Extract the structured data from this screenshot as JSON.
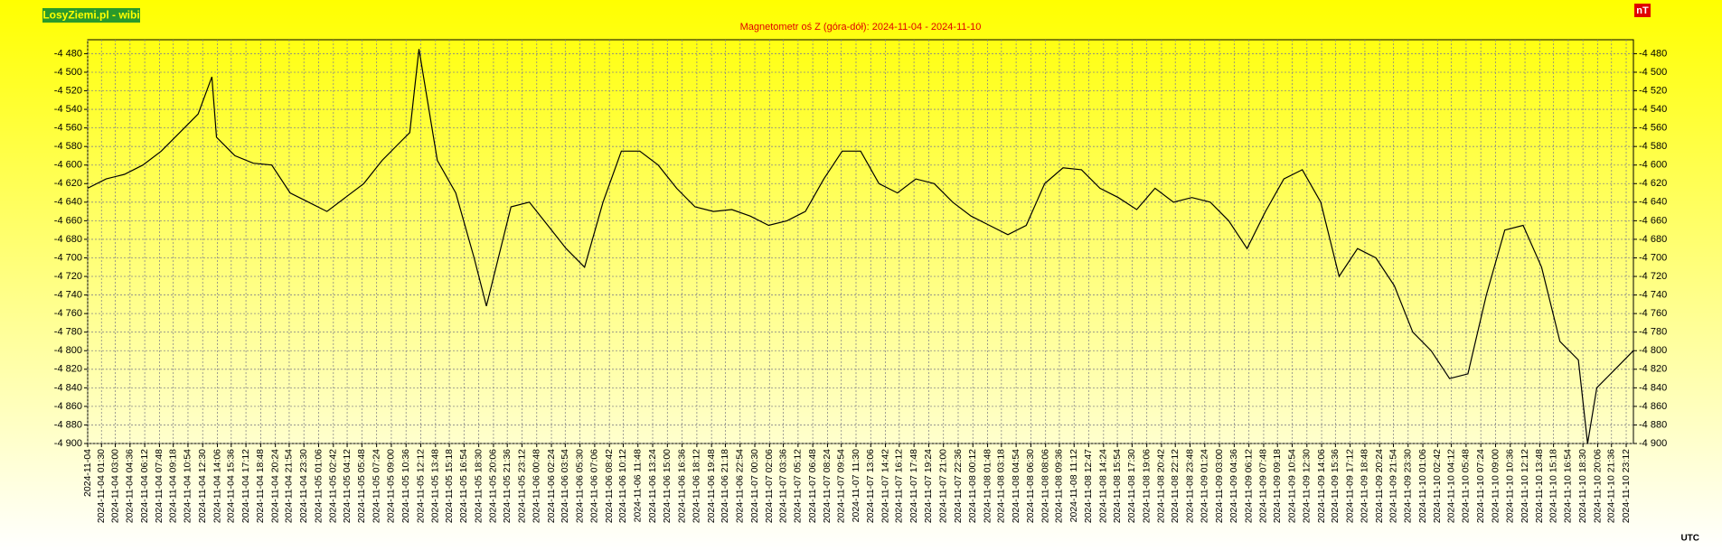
{
  "brand": "LosyZiemi.pl - wibi",
  "unit": "nT",
  "timezone": "UTC",
  "chart_data": {
    "type": "line",
    "title": "Magnetometr oś Z (góra-dół): 2024-11-04 - 2024-11-10",
    "color": "#000000",
    "grid": true,
    "x": [
      "2024-11-04 00:00",
      "2024-11-04 02:00",
      "2024-11-04 04:00",
      "2024-11-04 06:00",
      "2024-11-04 08:00",
      "2024-11-04 10:00",
      "2024-11-04 12:00",
      "2024-11-04 13:30",
      "2024-11-04 14:00",
      "2024-11-04 16:00",
      "2024-11-04 18:00",
      "2024-11-04 20:00",
      "2024-11-04 22:00",
      "2024-11-05 00:00",
      "2024-11-05 02:00",
      "2024-11-05 04:00",
      "2024-11-05 06:00",
      "2024-11-05 08:00",
      "2024-11-05 10:00",
      "2024-11-05 11:00",
      "2024-11-05 12:00",
      "2024-11-05 14:00",
      "2024-11-05 16:00",
      "2024-11-05 18:00",
      "2024-11-05 19:20",
      "2024-11-05 22:00",
      "2024-11-06 00:00",
      "2024-11-06 02:00",
      "2024-11-06 04:00",
      "2024-11-06 06:00",
      "2024-11-06 08:00",
      "2024-11-06 10:00",
      "2024-11-06 12:00",
      "2024-11-06 14:00",
      "2024-11-06 16:00",
      "2024-11-06 18:00",
      "2024-11-06 20:00",
      "2024-11-06 22:00",
      "2024-11-07 00:00",
      "2024-11-07 02:00",
      "2024-11-07 04:00",
      "2024-11-07 06:00",
      "2024-11-07 08:00",
      "2024-11-07 10:00",
      "2024-11-07 12:00",
      "2024-11-07 14:00",
      "2024-11-07 16:00",
      "2024-11-07 18:00",
      "2024-11-07 20:00",
      "2024-11-07 22:00",
      "2024-11-08 00:00",
      "2024-11-08 02:00",
      "2024-11-08 04:00",
      "2024-11-08 06:00",
      "2024-11-08 08:00",
      "2024-11-08 10:00",
      "2024-11-08 12:00",
      "2024-11-08 14:00",
      "2024-11-08 16:00",
      "2024-11-08 18:00",
      "2024-11-08 20:00",
      "2024-11-08 22:00",
      "2024-11-09 00:00",
      "2024-11-09 02:00",
      "2024-11-09 04:00",
      "2024-11-09 06:00",
      "2024-11-09 08:00",
      "2024-11-09 10:00",
      "2024-11-09 12:00",
      "2024-11-09 14:00",
      "2024-11-09 16:00",
      "2024-11-09 18:00",
      "2024-11-09 20:00",
      "2024-11-09 22:00",
      "2024-11-10 00:00",
      "2024-11-10 02:00",
      "2024-11-10 04:00",
      "2024-11-10 06:00",
      "2024-11-10 08:00",
      "2024-11-10 10:00",
      "2024-11-10 12:00",
      "2024-11-10 14:00",
      "2024-11-10 16:00",
      "2024-11-10 18:00",
      "2024-11-10 19:00",
      "2024-11-10 20:00",
      "2024-11-10 22:00",
      "2024-11-10 23:59"
    ],
    "values": [
      -4625,
      -4615,
      -4610,
      -4600,
      -4585,
      -4565,
      -4545,
      -4505,
      -4570,
      -4590,
      -4598,
      -4600,
      -4630,
      -4640,
      -4650,
      -4635,
      -4620,
      -4595,
      -4575,
      -4565,
      -4475,
      -4595,
      -4630,
      -4700,
      -4752,
      -4645,
      -4640,
      -4665,
      -4690,
      -4710,
      -4640,
      -4585,
      -4585,
      -4600,
      -4625,
      -4645,
      -4650,
      -4648,
      -4655,
      -4665,
      -4660,
      -4650,
      -4615,
      -4585,
      -4585,
      -4620,
      -4630,
      -4615,
      -4620,
      -4640,
      -4655,
      -4665,
      -4675,
      -4665,
      -4620,
      -4603,
      -4605,
      -4625,
      -4635,
      -4648,
      -4625,
      -4640,
      -4635,
      -4640,
      -4660,
      -4690,
      -4650,
      -4615,
      -4605,
      -4640,
      -4720,
      -4690,
      -4700,
      -4730,
      -4780,
      -4800,
      -4830,
      -4825,
      -4740,
      -4670,
      -4665,
      -4710,
      -4790,
      -4810,
      -4900,
      -4840,
      -4820,
      -4800
    ],
    "xlim": [
      "2024-11-04 00:00",
      "2024-11-10 23:59"
    ],
    "xticks": [
      "2024-11-04",
      "2024-11-04 01:30",
      "2024-11-04 03:00",
      "2024-11-04 04:36",
      "2024-11-04 06:12",
      "2024-11-04 07:48",
      "2024-11-04 09:18",
      "2024-11-04 10:54",
      "2024-11-04 12:30",
      "2024-11-04 14:06",
      "2024-11-04 15:36",
      "2024-11-04 17:12",
      "2024-11-04 18:48",
      "2024-11-04 20:24",
      "2024-11-04 21:54",
      "2024-11-04 23:30",
      "2024-11-05 01:06",
      "2024-11-05 02:42",
      "2024-11-05 04:12",
      "2024-11-05 05:48",
      "2024-11-05 07:24",
      "2024-11-05 09:00",
      "2024-11-05 10:36",
      "2024-11-05 12:12",
      "2024-11-05 13:48",
      "2024-11-05 15:18",
      "2024-11-05 16:54",
      "2024-11-05 18:30",
      "2024-11-05 20:06",
      "2024-11-05 21:36",
      "2024-11-05 23:12",
      "2024-11-06 00:48",
      "2024-11-06 02:24",
      "2024-11-06 03:54",
      "2024-11-06 05:30",
      "2024-11-06 07:06",
      "2024-11-06 08:42",
      "2024-11-06 10:12",
      "2024-11-06 11:48",
      "2024-11-06 13:24",
      "2024-11-06 15:00",
      "2024-11-06 16:36",
      "2024-11-06 18:12",
      "2024-11-06 19:48",
      "2024-11-06 21:18",
      "2024-11-06 22:54",
      "2024-11-07 00:30",
      "2024-11-07 02:06",
      "2024-11-07 03:36",
      "2024-11-07 05:12",
      "2024-11-07 06:48",
      "2024-11-07 08:24",
      "2024-11-07 09:54",
      "2024-11-07 11:30",
      "2024-11-07 13:06",
      "2024-11-07 14:42",
      "2024-11-07 16:12",
      "2024-11-07 17:48",
      "2024-11-07 19:24",
      "2024-11-07 21:00",
      "2024-11-07 22:36",
      "2024-11-08 00:12",
      "2024-11-08 01:48",
      "2024-11-08 03:18",
      "2024-11-08 04:54",
      "2024-11-08 06:30",
      "2024-11-08 08:06",
      "2024-11-08 09:36",
      "2024-11-08 11:12",
      "2024-11-08 12:47",
      "2024-11-08 14:24",
      "2024-11-08 15:54",
      "2024-11-08 17:30",
      "2024-11-08 19:06",
      "2024-11-08 20:42",
      "2024-11-08 22:12",
      "2024-11-08 23:48",
      "2024-11-09 01:24",
      "2024-11-09 03:00",
      "2024-11-09 04:36",
      "2024-11-09 06:12",
      "2024-11-09 07:48",
      "2024-11-09 09:18",
      "2024-11-09 10:54",
      "2024-11-09 12:30",
      "2024-11-09 14:06",
      "2024-11-09 15:36",
      "2024-11-09 17:12",
      "2024-11-09 18:48",
      "2024-11-09 20:24",
      "2024-11-09 21:54",
      "2024-11-09 23:30",
      "2024-11-10 01:06",
      "2024-11-10 02:42",
      "2024-11-10 04:12",
      "2024-11-10 05:48",
      "2024-11-10 07:24",
      "2024-11-10 09:00",
      "2024-11-10 10:36",
      "2024-11-10 12:12",
      "2024-11-10 13:48",
      "2024-11-10 15:18",
      "2024-11-10 16:54",
      "2024-11-10 18:30",
      "2024-11-10 20:06",
      "2024-11-10 21:36",
      "2024-11-10 23:12"
    ],
    "ylim": [
      -4900,
      -4465
    ],
    "yticks": [
      {
        "value": -4480,
        "label": "-4 480"
      },
      {
        "value": -4500,
        "label": "-4 500"
      },
      {
        "value": -4520,
        "label": "-4 520"
      },
      {
        "value": -4540,
        "label": "-4 540"
      },
      {
        "value": -4560,
        "label": "-4 560"
      },
      {
        "value": -4580,
        "label": "-4 580"
      },
      {
        "value": -4600,
        "label": "-4 600"
      },
      {
        "value": -4620,
        "label": "-4 620"
      },
      {
        "value": -4640,
        "label": "-4 640"
      },
      {
        "value": -4660,
        "label": "-4 660"
      },
      {
        "value": -4680,
        "label": "-4 680"
      },
      {
        "value": -4700,
        "label": "-4 700"
      },
      {
        "value": -4720,
        "label": "-4 720"
      },
      {
        "value": -4740,
        "label": "-4 740"
      },
      {
        "value": -4760,
        "label": "-4 760"
      },
      {
        "value": -4780,
        "label": "-4 780"
      },
      {
        "value": -4800,
        "label": "-4 800"
      },
      {
        "value": -4820,
        "label": "-4 820"
      },
      {
        "value": -4840,
        "label": "-4 840"
      },
      {
        "value": -4860,
        "label": "-4 860"
      },
      {
        "value": -4880,
        "label": "-4 880"
      },
      {
        "value": -4900,
        "label": "-4 900"
      }
    ]
  }
}
